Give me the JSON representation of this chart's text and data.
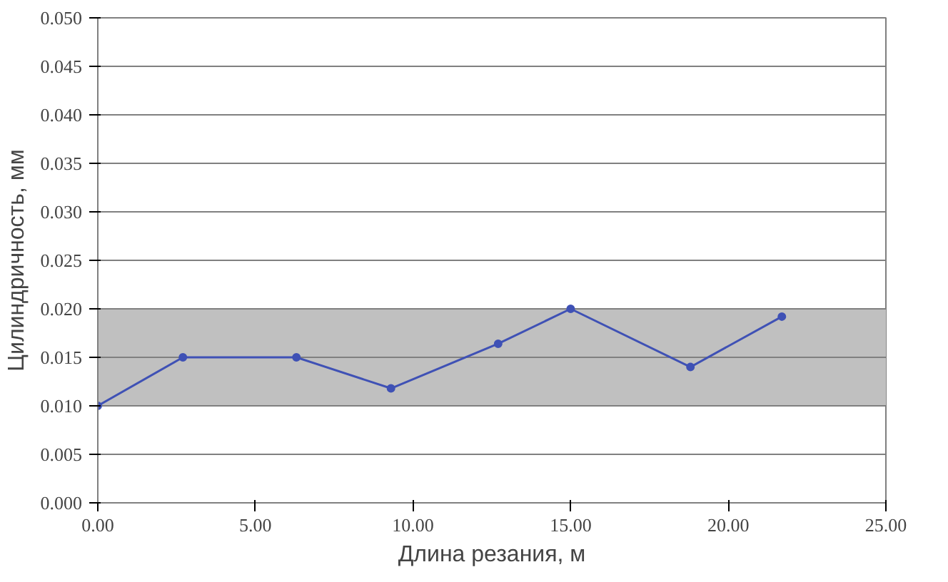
{
  "chart_data": {
    "type": "line",
    "xlabel": "Длина резания, м",
    "ylabel": "Цилиндричность, мм",
    "x": [
      0,
      2.7,
      6.3,
      9.3,
      12.7,
      15.0,
      18.8,
      21.7
    ],
    "series": [
      {
        "color": "#3f51b5",
        "values": [
          0.01,
          0.015,
          0.015,
          0.0118,
          0.0164,
          0.02,
          0.014,
          0.0192
        ]
      }
    ],
    "xlim": [
      0,
      25
    ],
    "xticks": [
      {
        "value": 0,
        "label": "0.00"
      },
      {
        "value": 5,
        "label": "5.00"
      },
      {
        "value": 10,
        "label": "10.00"
      },
      {
        "value": 15,
        "label": "15.00"
      },
      {
        "value": 20,
        "label": "20.00"
      },
      {
        "value": 25,
        "label": "25.00"
      }
    ],
    "ylim": [
      0,
      0.05
    ],
    "yticks": [
      {
        "value": 0,
        "label": "0.000"
      },
      {
        "value": 0.005,
        "label": "0.005"
      },
      {
        "value": 0.01,
        "label": "0.010"
      },
      {
        "value": 0.015,
        "label": "0.015"
      },
      {
        "value": 0.02,
        "label": "0.020"
      },
      {
        "value": 0.025,
        "label": "0.025"
      },
      {
        "value": 0.03,
        "label": "0.030"
      },
      {
        "value": 0.035,
        "label": "0.035"
      },
      {
        "value": 0.04,
        "label": "0.040"
      },
      {
        "value": 0.045,
        "label": "0.045"
      },
      {
        "value": 0.05,
        "label": "0.050"
      }
    ],
    "bands": [
      {
        "axis": "y",
        "from": 0.01,
        "to": 0.02,
        "color": "#c0c0c0"
      }
    ],
    "grid": "y",
    "marker": "circle",
    "line_style": "solid"
  }
}
